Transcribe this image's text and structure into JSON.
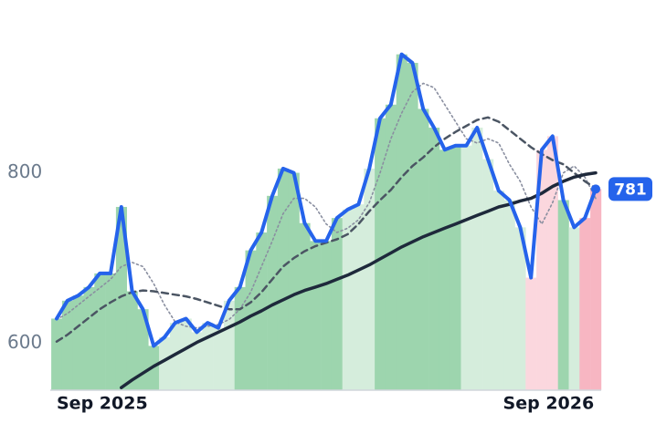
{
  "chart_data": {
    "type": "line",
    "x": [
      0,
      8,
      16,
      24,
      32,
      40,
      48,
      56,
      64,
      72,
      80,
      88,
      96,
      104,
      112,
      120,
      128,
      136,
      144,
      152,
      160,
      168,
      176,
      184,
      192,
      200,
      208,
      216,
      224,
      232,
      240,
      248,
      256,
      264,
      272,
      280,
      288,
      296,
      304,
      312,
      320,
      328,
      336,
      344,
      352,
      360,
      368,
      376,
      384,
      392,
      400
    ],
    "xlim": [
      0,
      400
    ],
    "xticks": [
      {
        "value": 0,
        "label": "Sep 2025"
      },
      {
        "value": 365,
        "label": "Sep 2026"
      }
    ],
    "ylim": [
      545,
      985
    ],
    "yticks": [
      600,
      800
    ],
    "band_colors": [
      "#9dd5ae",
      "#9dd5ae",
      "#9dd5ae",
      "#9dd5ae",
      "#9dd5ae",
      "#9dd5ae",
      "#9dd5ae",
      "#9dd5ae",
      "#9dd5ae",
      "#9dd5ae",
      "#d5eddc",
      "#d5eddc",
      "#d5eddc",
      "#d5eddc",
      "#d5eddc",
      "#d5eddc",
      "#d5eddc",
      "#9dd5ae",
      "#9dd5ae",
      "#9dd5ae",
      "#9dd5ae",
      "#9dd5ae",
      "#9dd5ae",
      "#9dd5ae",
      "#9dd5ae",
      "#9dd5ae",
      "#9dd5ae",
      "#d5eddc",
      "#d5eddc",
      "#d5eddc",
      "#9dd5ae",
      "#9dd5ae",
      "#9dd5ae",
      "#9dd5ae",
      "#9dd5ae",
      "#9dd5ae",
      "#9dd5ae",
      "#9dd5ae",
      "#d5eddc",
      "#d5eddc",
      "#d5eddc",
      "#d5eddc",
      "#d5eddc",
      "#d5eddc",
      "#fbd7de",
      "#fbd7de",
      "#fbd7de",
      "#9dd5ae",
      "#d5eddc",
      "#f7b6c2",
      "#f7b6c2"
    ],
    "series": [
      {
        "color": "#2563eb",
        "width": 4,
        "values": [
          629,
          650,
          656,
          666,
          682,
          682,
          760,
          661,
          640,
          597,
          607,
          624,
          629,
          613,
          624,
          618,
          650,
          666,
          709,
          730,
          773,
          805,
          800,
          741,
          720,
          720,
          747,
          757,
          763,
          805,
          864,
          880,
          939,
          929,
          875,
          853,
          827,
          832,
          832,
          853,
          816,
          779,
          768,
          736,
          677,
          827,
          843,
          768,
          736,
          747,
          781
        ]
      },
      {
        "color": "#1e293b",
        "width": 3.5,
        "values": [
          null,
          null,
          null,
          null,
          null,
          null,
          548,
          557,
          565,
          573,
          580,
          587,
          594,
          601,
          607,
          613,
          619,
          625,
          632,
          638,
          645,
          651,
          657,
          662,
          666,
          670,
          675,
          680,
          686,
          692,
          699,
          706,
          713,
          719,
          725,
          730,
          735,
          740,
          745,
          750,
          755,
          760,
          763,
          767,
          770,
          776,
          784,
          790,
          795,
          798,
          800
        ]
      },
      {
        "color": "#4b5563",
        "width": 2.5,
        "dash": "7,5",
        "values": [
          602,
          610,
          620,
          630,
          640,
          648,
          655,
          660,
          662,
          661,
          659,
          657,
          655,
          652,
          648,
          644,
          640,
          640,
          648,
          660,
          675,
          690,
          700,
          708,
          714,
          718,
          722,
          728,
          740,
          755,
          768,
          780,
          795,
          808,
          818,
          830,
          840,
          848,
          855,
          862,
          865,
          860,
          850,
          840,
          830,
          822,
          815,
          810,
          800,
          790,
          782
        ]
      },
      {
        "color": "#8a8fa0",
        "width": 1.6,
        "dash": "2,3",
        "values": [
          628,
          635,
          645,
          655,
          665,
          675,
          690,
          695,
          690,
          670,
          645,
          625,
          620,
          618,
          620,
          622,
          628,
          640,
          660,
          690,
          720,
          752,
          770,
          770,
          760,
          740,
          730,
          735,
          745,
          765,
          800,
          840,
          870,
          895,
          905,
          900,
          880,
          860,
          840,
          835,
          840,
          835,
          810,
          790,
          760,
          740,
          765,
          800,
          808,
          795,
          770
        ]
      }
    ]
  }
}
